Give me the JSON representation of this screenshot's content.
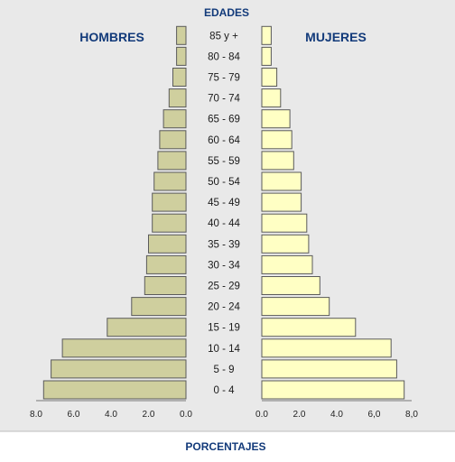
{
  "chart_data": {
    "type": "bar",
    "orientation": "horizontal",
    "title": "EDADES",
    "xlabel": "PORCENTAJES",
    "categories": [
      "0 - 4",
      "5 - 9",
      "10 - 14",
      "15 - 19",
      "20 - 24",
      "25 - 29",
      "30 - 34",
      "35 - 39",
      "40 - 44",
      "45 - 49",
      "50 - 54",
      "55 - 59",
      "60 - 64",
      "65 - 69",
      "70 - 74",
      "75 - 79",
      "80 - 84",
      "85 y +"
    ],
    "series": [
      {
        "name": "HOMBRES",
        "color": "#cfcf9e",
        "values": [
          7.6,
          7.2,
          6.6,
          4.2,
          2.9,
          2.2,
          2.1,
          2.0,
          1.8,
          1.8,
          1.7,
          1.5,
          1.4,
          1.2,
          0.9,
          0.7,
          0.5,
          0.5
        ]
      },
      {
        "name": "MUJERES",
        "color": "#ffffc4",
        "values": [
          7.6,
          7.2,
          6.9,
          5.0,
          3.6,
          3.1,
          2.7,
          2.5,
          2.4,
          2.1,
          2.1,
          1.7,
          1.6,
          1.5,
          1.0,
          0.8,
          0.5,
          0.5
        ]
      }
    ],
    "left_ticks": [
      "8.0",
      "6.0",
      "4.0",
      "2.0",
      "0.0"
    ],
    "right_ticks": [
      "0.0",
      "2.0",
      "4.0",
      "6,0",
      "8,0"
    ],
    "xlim": [
      0,
      8
    ],
    "grid": false,
    "legend": "top"
  },
  "colors": {
    "background": "#e9e9e9",
    "heading": "#123a7a",
    "bar_stroke": "#5a5a5a"
  }
}
